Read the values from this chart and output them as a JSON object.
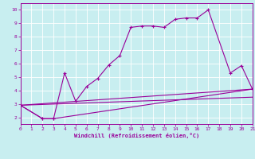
{
  "bg_color": "#c8eef0",
  "line_color": "#990099",
  "grid_color": "#ffffff",
  "xlim": [
    0,
    21
  ],
  "ylim": [
    1.5,
    10.5
  ],
  "xticks": [
    0,
    1,
    2,
    3,
    4,
    5,
    6,
    7,
    8,
    9,
    10,
    11,
    12,
    13,
    14,
    15,
    16,
    17,
    18,
    19,
    20,
    21
  ],
  "yticks": [
    2,
    3,
    4,
    5,
    6,
    7,
    8,
    9,
    10
  ],
  "xlabel": "Windchill (Refroidissement éolien,°C)",
  "line1_x": [
    0,
    2,
    3,
    4,
    5,
    6,
    7,
    8,
    9,
    10,
    11,
    12,
    13,
    14,
    15,
    16,
    17,
    19,
    20,
    21
  ],
  "line1_y": [
    2.9,
    1.9,
    1.9,
    5.3,
    3.2,
    4.3,
    4.9,
    5.9,
    6.6,
    8.7,
    8.8,
    8.8,
    8.7,
    9.3,
    9.4,
    9.4,
    10.0,
    5.3,
    5.85,
    4.1
  ],
  "line2_x": [
    0,
    2,
    3,
    21
  ],
  "line2_y": [
    2.9,
    1.9,
    1.9,
    4.1
  ],
  "line3_x": [
    0,
    21
  ],
  "line3_y": [
    2.9,
    3.5
  ],
  "line4_x": [
    0,
    21
  ],
  "line4_y": [
    2.9,
    4.1
  ]
}
